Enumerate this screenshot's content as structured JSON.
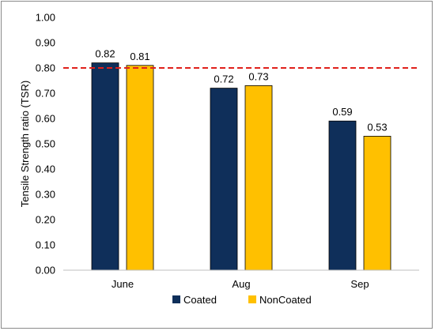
{
  "chart_data": {
    "type": "bar",
    "categories": [
      "June",
      "Aug",
      "Sep"
    ],
    "series": [
      {
        "name": "Coated",
        "values": [
          0.82,
          0.72,
          0.59
        ],
        "labels": [
          "0.82",
          "0.72",
          "0.59"
        ],
        "color": "#0f2f5a"
      },
      {
        "name": "NonCoated",
        "values": [
          0.81,
          0.73,
          0.53
        ],
        "labels": [
          "0.81",
          "0.73",
          "0.53"
        ],
        "color": "#ffc000"
      }
    ],
    "ylabel": "Tensile Strength ratio (TSR)",
    "ylim": [
      0,
      1.0
    ],
    "yticks": [
      "0.00",
      "0.10",
      "0.20",
      "0.30",
      "0.40",
      "0.50",
      "0.60",
      "0.70",
      "0.80",
      "0.90",
      "1.00"
    ],
    "reference_line": {
      "value": 0.8,
      "color": "#e0201b",
      "style": "dashed"
    },
    "legend_position": "bottom-center",
    "grid": false
  }
}
